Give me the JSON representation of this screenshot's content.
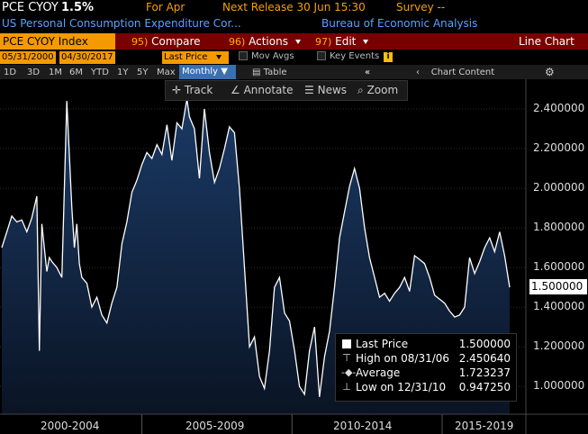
{
  "header": {
    "ticker": "PCE CYOY",
    "price": "1.5%",
    "period": "For Apr",
    "next_release": "Next Release 30 Jun 15:30",
    "survey": "Survey --",
    "description": "US Personal Consumption Expenditure Cor...",
    "source": "Bureau of Economic Analysis"
  },
  "menubar": {
    "security": "PCE CYOY Index",
    "compare_num": "95)",
    "compare": "Compare",
    "actions_num": "96)",
    "actions": "Actions",
    "edit_num": "97)",
    "edit": "Edit",
    "title": "Line Chart"
  },
  "controls": {
    "start_date": "05/31/2000",
    "end_date": "04/30/2017",
    "field": "Last Price",
    "mov_avgs": "Mov Avgs",
    "key_events": "Key Events"
  },
  "periods": [
    "1D",
    "3D",
    "1M",
    "6M",
    "YTD",
    "1Y",
    "5Y",
    "Max"
  ],
  "frequency": "Monthly",
  "table_label": "Table",
  "chart_content": "Chart Content",
  "tools": {
    "track": "Track",
    "annotate": "Annotate",
    "news": "News",
    "zoom": "Zoom"
  },
  "legend": {
    "last_price_label": "Last Price",
    "last_price_value": "1.500000",
    "high_label": "High on 08/31/06",
    "high_value": "2.450640",
    "average_label": "Average",
    "average_value": "1.723237",
    "low_label": "Low on 12/31/10",
    "low_value": "0.947250"
  },
  "last_tag": "1.500000",
  "colors": {
    "accent": "#f4a000",
    "menubar": "#7a0000",
    "line": "#ffffff",
    "fill_top": "#1b3a66",
    "fill_bottom": "#0a1424",
    "plot_bg": "#000000"
  },
  "chart_data": {
    "type": "area",
    "title": "",
    "xlabel": "",
    "ylabel": "",
    "x_tick_labels": [
      "2000-2004",
      "2005-2009",
      "2010-2014",
      "2015-2019"
    ],
    "y_tick_labels": [
      "1.000000",
      "1.200000",
      "1.400000",
      "1.600000",
      "1.800000",
      "2.000000",
      "2.200000",
      "2.400000"
    ],
    "ylim": [
      0.86,
      2.55
    ],
    "xlim": [
      "2000-05-31",
      "2017-04-30"
    ],
    "grid": true,
    "legend_position": "bottom-right",
    "series": [
      {
        "name": "Last Price",
        "x": [
          "2000-05",
          "2000-07",
          "2000-09",
          "2000-11",
          "2001-01",
          "2001-03",
          "2001-05",
          "2001-07",
          "2001-08",
          "2001-09",
          "2001-10",
          "2001-11",
          "2001-12",
          "2002-01",
          "2002-03",
          "2002-05",
          "2002-07",
          "2002-09",
          "2002-10",
          "2002-11",
          "2002-12",
          "2003-01",
          "2003-03",
          "2003-05",
          "2003-07",
          "2003-09",
          "2003-11",
          "2004-01",
          "2004-03",
          "2004-05",
          "2004-07",
          "2004-09",
          "2004-11",
          "2005-01",
          "2005-03",
          "2005-05",
          "2005-07",
          "2005-09",
          "2005-11",
          "2006-01",
          "2006-03",
          "2006-05",
          "2006-07",
          "2006-08",
          "2006-10",
          "2006-12",
          "2007-02",
          "2007-04",
          "2007-06",
          "2007-08",
          "2007-10",
          "2007-12",
          "2008-02",
          "2008-04",
          "2008-06",
          "2008-08",
          "2008-10",
          "2008-12",
          "2009-02",
          "2009-04",
          "2009-06",
          "2009-08",
          "2009-10",
          "2009-12",
          "2010-02",
          "2010-04",
          "2010-06",
          "2010-08",
          "2010-10",
          "2010-12",
          "2011-02",
          "2011-04",
          "2011-06",
          "2011-08",
          "2011-10",
          "2011-12",
          "2012-02",
          "2012-04",
          "2012-06",
          "2012-08",
          "2012-10",
          "2012-12",
          "2013-02",
          "2013-04",
          "2013-06",
          "2013-08",
          "2013-10",
          "2013-12",
          "2014-02",
          "2014-04",
          "2014-06",
          "2014-08",
          "2014-10",
          "2014-12",
          "2015-02",
          "2015-04",
          "2015-06",
          "2015-08",
          "2015-10",
          "2015-12",
          "2016-02",
          "2016-04",
          "2016-06",
          "2016-08",
          "2016-10",
          "2016-12",
          "2017-02",
          "2017-04"
        ],
        "values": [
          1.7,
          1.78,
          1.86,
          1.83,
          1.84,
          1.78,
          1.85,
          1.96,
          1.18,
          1.82,
          1.7,
          1.58,
          1.65,
          1.63,
          1.6,
          1.55,
          2.44,
          1.9,
          1.7,
          1.82,
          1.62,
          1.55,
          1.52,
          1.4,
          1.45,
          1.36,
          1.32,
          1.42,
          1.5,
          1.72,
          1.83,
          1.98,
          2.04,
          2.12,
          2.18,
          2.15,
          2.22,
          2.17,
          2.32,
          2.14,
          2.33,
          2.3,
          2.45,
          2.36,
          2.3,
          2.05,
          2.4,
          2.18,
          2.03,
          2.1,
          2.2,
          2.31,
          2.28,
          2.0,
          1.6,
          1.2,
          1.25,
          1.05,
          0.99,
          1.18,
          1.5,
          1.55,
          1.37,
          1.33,
          1.18,
          1.0,
          0.96,
          1.18,
          1.3,
          0.947,
          1.15,
          1.28,
          1.5,
          1.75,
          1.88,
          2.01,
          2.1,
          2.0,
          1.8,
          1.65,
          1.55,
          1.45,
          1.47,
          1.43,
          1.47,
          1.5,
          1.55,
          1.48,
          1.66,
          1.64,
          1.62,
          1.55,
          1.46,
          1.44,
          1.42,
          1.38,
          1.35,
          1.36,
          1.4,
          1.65,
          1.57,
          1.63,
          1.7,
          1.75,
          1.68,
          1.78,
          1.66,
          1.5
        ]
      }
    ]
  }
}
